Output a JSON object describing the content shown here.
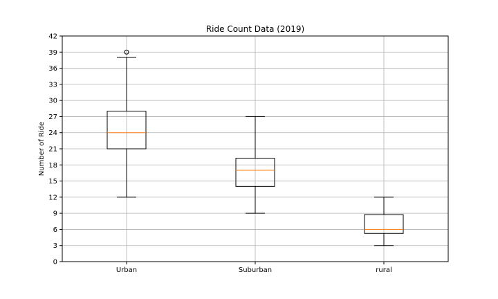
{
  "chart_data": {
    "type": "box",
    "title": "Ride Count Data (2019)",
    "xlabel": "",
    "ylabel": "Number of Ride",
    "ylim": [
      0,
      42
    ],
    "yticks": [
      0,
      3,
      6,
      9,
      12,
      15,
      18,
      21,
      24,
      27,
      30,
      33,
      36,
      39,
      42
    ],
    "grid": true,
    "categories": [
      "Urban",
      "Suburban",
      "rural"
    ],
    "boxes": [
      {
        "label": "Urban",
        "whisker_low": 12,
        "q1": 21,
        "median": 24,
        "q3": 28,
        "whisker_high": 38,
        "outliers": [
          39
        ]
      },
      {
        "label": "Suburban",
        "whisker_low": 9,
        "q1": 14,
        "median": 17,
        "q3": 19.25,
        "whisker_high": 27,
        "outliers": []
      },
      {
        "label": "rural",
        "whisker_low": 3,
        "q1": 5.25,
        "median": 6,
        "q3": 8.75,
        "whisker_high": 12,
        "outliers": []
      }
    ],
    "colors": {
      "box": "#000000",
      "median": "#ff7f0e",
      "grid": "#b0b0b0"
    }
  }
}
